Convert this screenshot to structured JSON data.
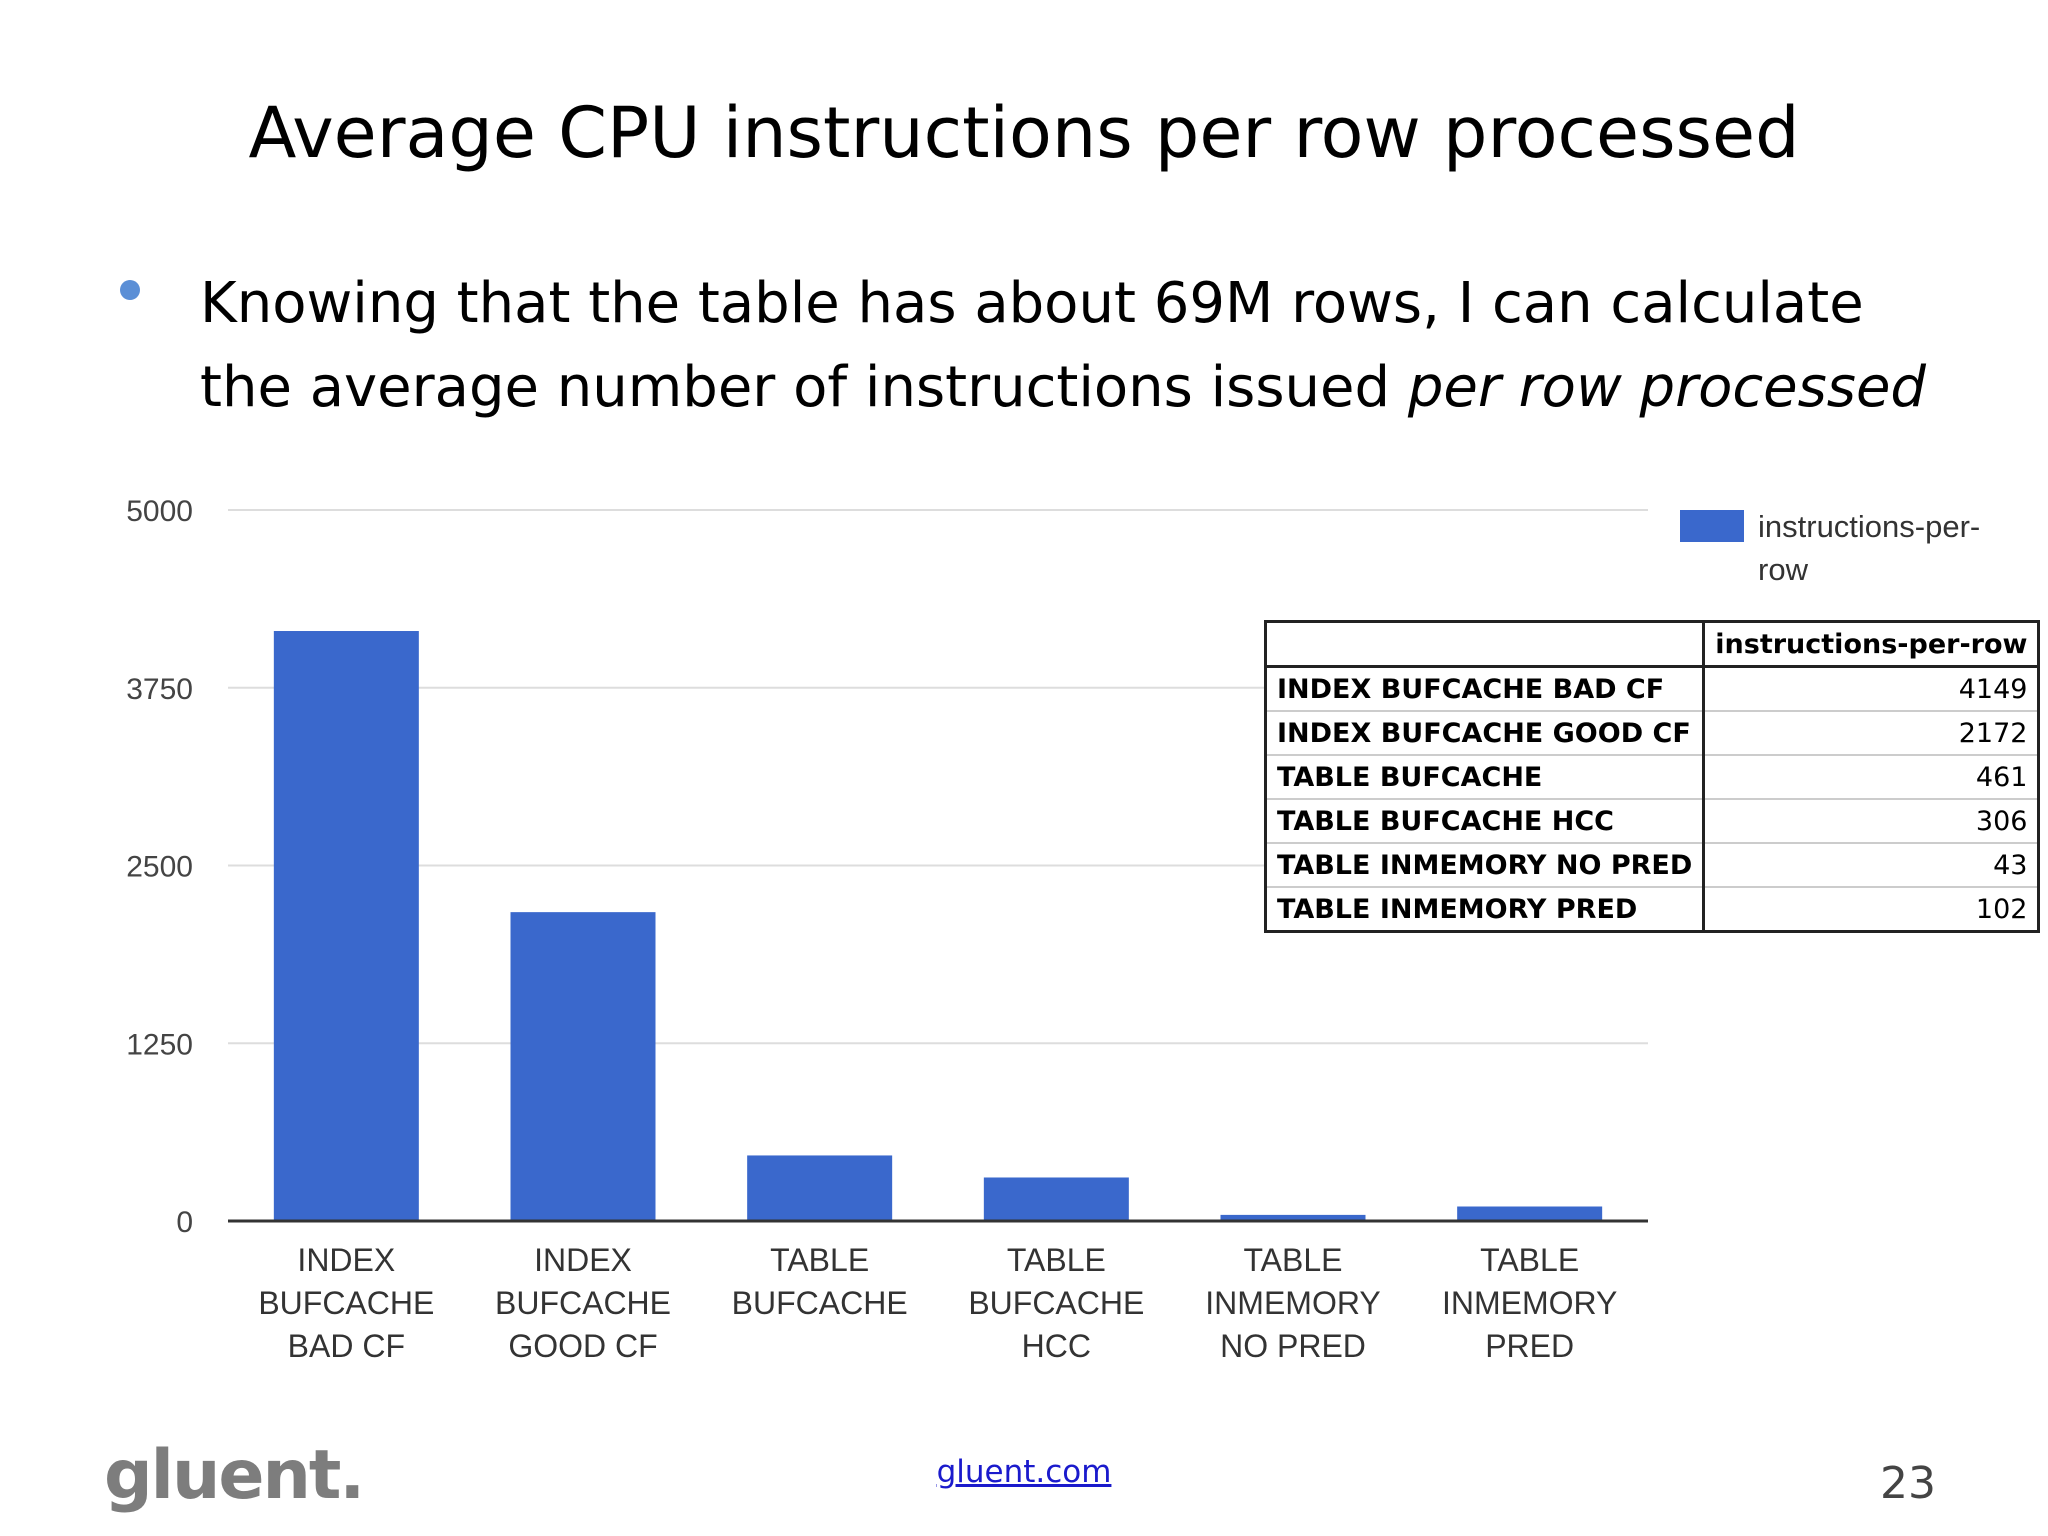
{
  "slide": {
    "title": "Average CPU instructions per row processed",
    "bullet_text": "Knowing that the table has about 69M rows, I can calculate the average number of instructions issued ",
    "bullet_emphasis": "per row processed",
    "logo_text": "gluent.",
    "footer_link": "gluent.com",
    "page_number": "23"
  },
  "colors": {
    "bar": "#3a68cc",
    "grid": "#dddddd",
    "axis": "#333333",
    "bullet": "#5b8fd6"
  },
  "chart_data": {
    "type": "bar",
    "categories": [
      [
        "INDEX",
        "BUFCACHE",
        "BAD CF"
      ],
      [
        "INDEX",
        "BUFCACHE",
        "GOOD CF"
      ],
      [
        "TABLE",
        "BUFCACHE"
      ],
      [
        "TABLE",
        "BUFCACHE",
        "HCC"
      ],
      [
        "TABLE",
        "INMEMORY",
        "NO PRED"
      ],
      [
        "TABLE",
        "INMEMORY",
        "PRED"
      ]
    ],
    "series": [
      {
        "name": "instructions-per-row",
        "legend_lines": [
          "instructions-per-",
          "row"
        ],
        "values": [
          4149,
          2172,
          461,
          306,
          43,
          102
        ]
      }
    ],
    "ylim": [
      0,
      5000
    ],
    "yticks": [
      0,
      1250,
      2500,
      3750,
      5000
    ],
    "grid": true,
    "legend_position": "top-right",
    "table": {
      "header": [
        "",
        "instructions-per-row"
      ],
      "rows": [
        [
          "INDEX BUFCACHE BAD CF",
          "4149"
        ],
        [
          "INDEX BUFCACHE GOOD CF",
          "2172"
        ],
        [
          "TABLE BUFCACHE",
          "461"
        ],
        [
          "TABLE BUFCACHE HCC",
          "306"
        ],
        [
          "TABLE INMEMORY NO PRED",
          "43"
        ],
        [
          "TABLE INMEMORY PRED",
          "102"
        ]
      ]
    }
  }
}
